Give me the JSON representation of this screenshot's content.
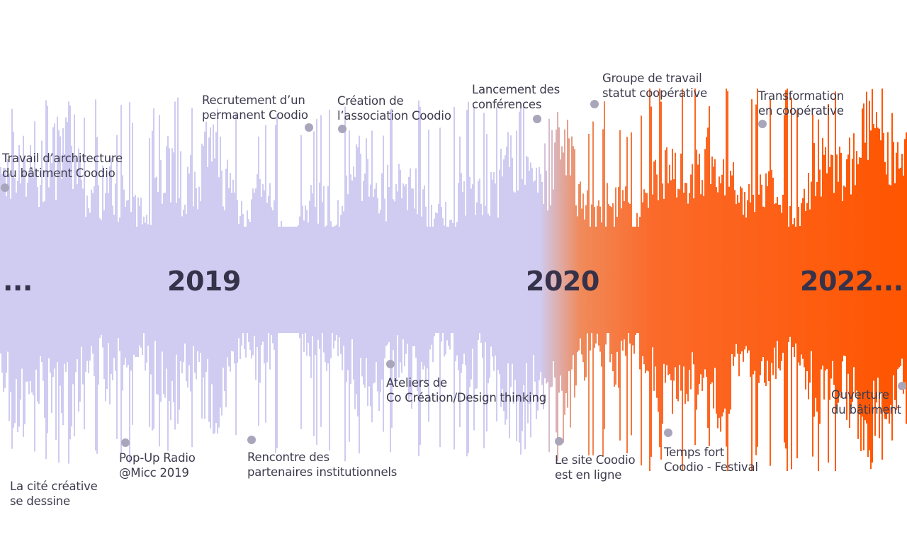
{
  "timeline": {
    "colors": {
      "lavender": "#cfcbf1",
      "orange": "#ff5500",
      "mid_orange": "#f07a40",
      "text": "#35324a",
      "marker": "#a9a6bc"
    },
    "years": [
      {
        "label": "..."
      },
      {
        "label": "2019"
      },
      {
        "label": "2020"
      },
      {
        "label": "2022..."
      }
    ],
    "events": [
      {
        "label": "Travail d’architecture\ndu bâtiment Coodio"
      },
      {
        "label": "Recrutement d’un\npermanent Coodio"
      },
      {
        "label": "Création de\nl’association Coodio"
      },
      {
        "label": "Lancement des\nconférences"
      },
      {
        "label": "Groupe de travail\nstatut coopérative"
      },
      {
        "label": "Transformation\nen coopérative"
      },
      {
        "label": "La cité créative\nse dessine"
      },
      {
        "label": "Pop-Up Radio\n@Micc 2019"
      },
      {
        "label": "Rencontre des\npartenaires institutionnels"
      },
      {
        "label": "Ateliers de\nCo Création/Design thinking"
      },
      {
        "label": "Le site Coodio\nest en ligne"
      },
      {
        "label": "Temps fort\nCoodio - Festival"
      },
      {
        "label": "Ouverture\ndu bâtiment"
      }
    ]
  }
}
